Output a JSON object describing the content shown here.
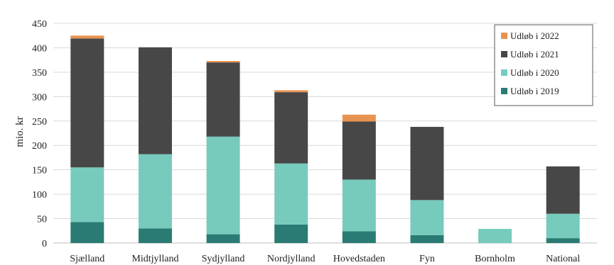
{
  "chart_data": {
    "type": "bar",
    "stacked": true,
    "title": "",
    "xlabel": "",
    "ylabel": "mio. kr",
    "ylim": [
      0,
      450
    ],
    "yticks": [
      0,
      50,
      100,
      150,
      200,
      250,
      300,
      350,
      400,
      450
    ],
    "grid": true,
    "legend_position": "top-right",
    "categories": [
      "Sjælland",
      "Midtjylland",
      "Sydjylland",
      "Nordjylland",
      "Hovedstaden",
      "Fyn",
      "Bornholm",
      "National"
    ],
    "series": [
      {
        "name": "Udløb i 2019",
        "color": "#2a7b73",
        "values": [
          43,
          30,
          18,
          38,
          24,
          16,
          0,
          10
        ]
      },
      {
        "name": "Udløb i 2020",
        "color": "#76cbbd",
        "values": [
          112,
          152,
          200,
          125,
          106,
          72,
          29,
          50
        ]
      },
      {
        "name": "Udløb i 2021",
        "color": "#474747",
        "values": [
          264,
          219,
          152,
          146,
          119,
          150,
          0,
          97
        ]
      },
      {
        "name": "Udløb i 2022",
        "color": "#e89451",
        "values": [
          6,
          0,
          3,
          4,
          14,
          0,
          0,
          0
        ]
      }
    ],
    "legend_order": [
      "Udløb i 2022",
      "Udløb i 2021",
      "Udløb i 2020",
      "Udløb i 2019"
    ]
  }
}
